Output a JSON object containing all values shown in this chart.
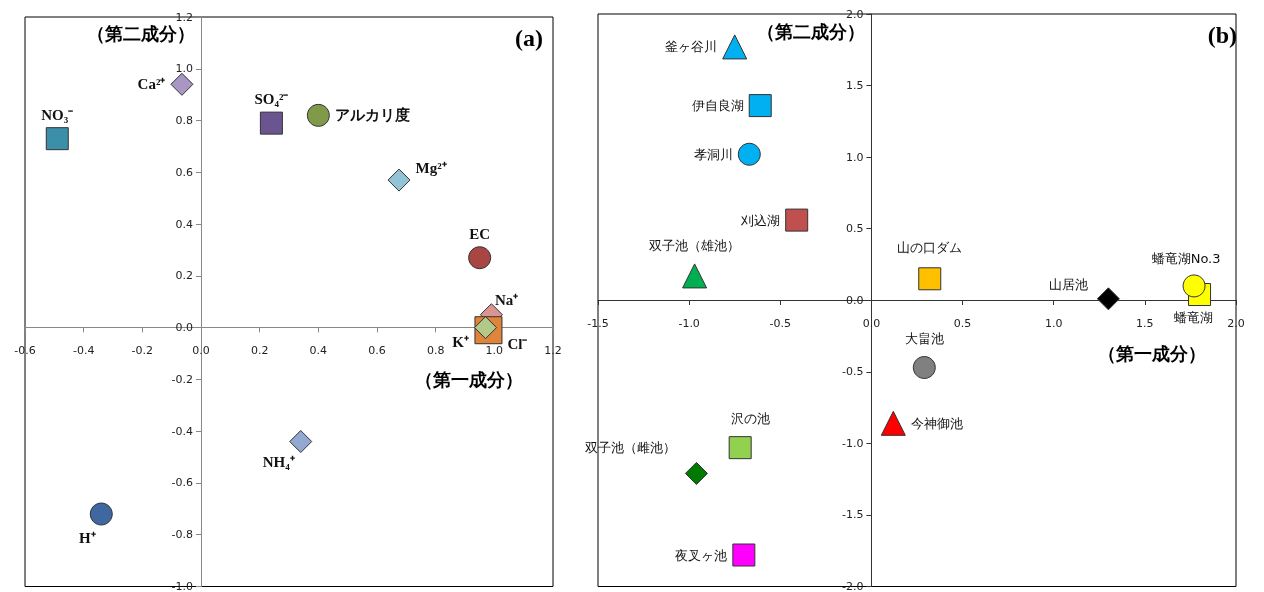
{
  "chart_data": [
    {
      "type": "scatter",
      "title": "(a)",
      "xlabel": "（第一成分）",
      "ylabel": "（第二成分）",
      "xlim": [
        -0.6,
        1.2
      ],
      "ylim": [
        -1.0,
        1.2
      ],
      "xticks": [
        -0.6,
        -0.4,
        -0.2,
        {
          "value": 0,
          "label": "0.0"
        },
        0.2,
        0.4,
        0.6,
        0.8,
        {
          "value": 1,
          "label": "1.0"
        },
        1.2
      ],
      "yticks": [
        {
          "value": -1,
          "label": "-1.0"
        },
        -0.8,
        -0.6,
        -0.4,
        -0.2,
        {
          "value": 0,
          "label": "0.0"
        },
        0.2,
        0.4,
        0.6,
        0.8,
        {
          "value": 1,
          "label": "1.0"
        },
        1.2
      ],
      "grid": false,
      "series": [
        {
          "name": "NO₃⁻",
          "color": "#3b8fa8",
          "marker": "square",
          "x": [
            -0.49
          ],
          "values": [
            0.73
          ]
        },
        {
          "name": "Ca²⁺",
          "color": "#a897c4",
          "marker": "diamond",
          "x": [
            -0.065
          ],
          "values": [
            0.94
          ]
        },
        {
          "name": "SO₄²⁻",
          "color": "#6b5591",
          "marker": "square",
          "x": [
            0.24
          ],
          "values": [
            0.79
          ]
        },
        {
          "name": "アルカリ度",
          "color": "#7f9a48",
          "marker": "circle",
          "x": [
            0.4
          ],
          "values": [
            0.82
          ]
        },
        {
          "name": "Mg²⁺",
          "color": "#92c3d6",
          "marker": "diamond",
          "x": [
            0.675
          ],
          "values": [
            0.57
          ]
        },
        {
          "name": "EC",
          "color": "#a94643",
          "marker": "circle",
          "x": [
            0.95
          ],
          "values": [
            0.27
          ]
        },
        {
          "name": "Na⁺",
          "color": "#d99594",
          "marker": "diamond",
          "x": [
            0.99
          ],
          "values": [
            0.05
          ]
        },
        {
          "name": "Cl⁻",
          "color": "#e0843a",
          "marker": "square",
          "x": [
            0.98
          ],
          "values": [
            -0.01
          ]
        },
        {
          "name": "K⁺",
          "color": "#b3c98a",
          "marker": "diamond",
          "x": [
            0.97
          ],
          "values": [
            0.0
          ]
        },
        {
          "name": "NH₄⁺",
          "color": "#93a9d1",
          "marker": "diamond",
          "x": [
            0.34
          ],
          "values": [
            -0.44
          ]
        },
        {
          "name": "H⁺",
          "color": "#3f67a0",
          "marker": "circle",
          "x": [
            -0.34
          ],
          "values": [
            -0.72
          ]
        }
      ]
    },
    {
      "type": "scatter",
      "title": "(b)",
      "xlabel": "（第一成分）",
      "ylabel": "（第二成分）",
      "xlim": [
        -1.5,
        2.0
      ],
      "ylim": [
        -2.0,
        2.0
      ],
      "xticks": [
        -1.5,
        {
          "value": -1,
          "label": "-1.0"
        },
        -0.5,
        {
          "value": 0,
          "label": "0.0"
        },
        0.5,
        {
          "value": 1,
          "label": "1.0"
        },
        1.5,
        {
          "value": 2,
          "label": "2.0"
        }
      ],
      "yticks": [
        {
          "value": -2,
          "label": "-2.0"
        },
        -1.5,
        {
          "value": -1,
          "label": "-1.0"
        },
        -0.5,
        {
          "value": 0,
          "label": "0.0"
        },
        0.5,
        {
          "value": 1,
          "label": "1.0"
        },
        1.5,
        {
          "value": 2,
          "label": "2.0"
        }
      ],
      "grid": false,
      "series": [
        {
          "name": "釜ヶ谷川",
          "color": "#00b0f0",
          "marker": "triangle",
          "x": [
            -0.75
          ],
          "values": [
            1.77
          ]
        },
        {
          "name": "伊自良湖",
          "color": "#00b0f0",
          "marker": "square",
          "x": [
            -0.61
          ],
          "values": [
            1.36
          ]
        },
        {
          "name": "孝洞川",
          "color": "#00b0f0",
          "marker": "circle",
          "x": [
            -0.67
          ],
          "values": [
            1.02
          ]
        },
        {
          "name": "刈込湖",
          "color": "#c0504d",
          "marker": "square",
          "x": [
            -0.41
          ],
          "values": [
            0.56
          ]
        },
        {
          "name": "双子池（雄池）",
          "color": "#00b050",
          "marker": "triangle",
          "x": [
            -0.97
          ],
          "values": [
            0.17
          ]
        },
        {
          "name": "山の口ダム",
          "color": "#ffc000",
          "marker": "square",
          "x": [
            0.32
          ],
          "values": [
            0.15
          ]
        },
        {
          "name": "山居池",
          "color": "#000000",
          "marker": "diamond",
          "x": [
            1.3
          ],
          "values": [
            0.01
          ]
        },
        {
          "name": "蟠竜湖No.3",
          "color": "#ffff00",
          "marker": "circle",
          "x": [
            1.77
          ],
          "values": [
            0.1
          ]
        },
        {
          "name": "蟠竜湖",
          "color": "#ffff00",
          "marker": "square",
          "x": [
            1.8
          ],
          "values": [
            0.04
          ]
        },
        {
          "name": "大畠池",
          "color": "#808080",
          "marker": "circle",
          "x": [
            0.29
          ],
          "values": [
            -0.47
          ]
        },
        {
          "name": "今神御池",
          "color": "#ff0000",
          "marker": "triangle",
          "x": [
            0.12
          ],
          "values": [
            -0.86
          ]
        },
        {
          "name": "沢の池",
          "color": "#92d050",
          "marker": "square",
          "x": [
            -0.72
          ],
          "values": [
            -1.03
          ]
        },
        {
          "name": "双子池（雌池）",
          "color": "#007a00",
          "marker": "diamond",
          "x": [
            -0.96
          ],
          "values": [
            -1.21
          ]
        },
        {
          "name": "夜叉ヶ池",
          "color": "#ff00ff",
          "marker": "square",
          "x": [
            -0.7
          ],
          "values": [
            -1.78
          ]
        }
      ]
    }
  ]
}
